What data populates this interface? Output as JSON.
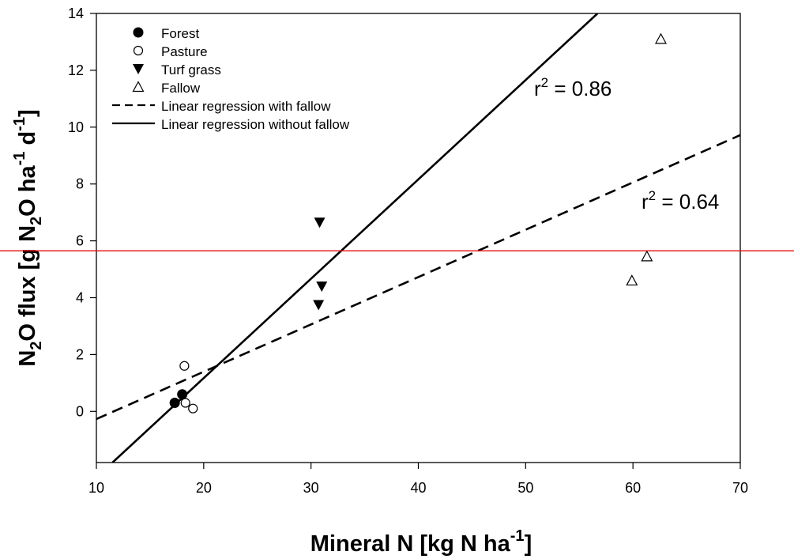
{
  "chart_data": {
    "type": "scatter",
    "xlabel": {
      "pre": "Mineral N [kg N ha",
      "sup": "-1",
      "post": "]"
    },
    "ylabel": {
      "parts": [
        "N",
        "2",
        "O flux [g N",
        "2",
        "O ha",
        "-1",
        " d",
        "-1",
        "]"
      ]
    },
    "xlim": [
      10,
      70
    ],
    "ylim": [
      -1.8,
      14
    ],
    "xticks": [
      10,
      20,
      30,
      40,
      50,
      60,
      70
    ],
    "yticks": [
      0,
      2,
      4,
      6,
      8,
      10,
      12,
      14
    ],
    "grid": false,
    "legend_position": "top-left",
    "series": [
      {
        "name": "Forest",
        "marker": "filled-circle",
        "points": [
          [
            17.3,
            0.3
          ],
          [
            18.0,
            0.6
          ]
        ]
      },
      {
        "name": "Pasture",
        "marker": "open-circle",
        "points": [
          [
            18.2,
            1.6
          ],
          [
            18.3,
            0.3
          ],
          [
            19.0,
            0.1
          ]
        ]
      },
      {
        "name": "Turf grass",
        "marker": "filled-triangle-down",
        "points": [
          [
            30.8,
            6.65
          ],
          [
            31.0,
            4.4
          ],
          [
            30.7,
            3.75
          ]
        ]
      },
      {
        "name": "Fallow",
        "marker": "open-triangle-up",
        "points": [
          [
            62.6,
            13.1
          ],
          [
            61.3,
            5.45
          ],
          [
            59.9,
            4.6
          ]
        ]
      }
    ],
    "regressions": [
      {
        "name": "Linear regression with fallow",
        "style": "dashed",
        "from": [
          10,
          -0.27
        ],
        "to": [
          70,
          9.72
        ],
        "r2_label": {
          "pre": "r",
          "sup": "2",
          "post": " = 0.64"
        }
      },
      {
        "name": "Linear regression without fallow",
        "style": "solid",
        "from": [
          11.5,
          -1.8
        ],
        "to": [
          56.7,
          14
        ],
        "r2_label": {
          "pre": "r",
          "sup": "2",
          "post": " = 0.86"
        }
      }
    ],
    "reference_line": {
      "y": 5.65,
      "color": "#e01010"
    }
  }
}
